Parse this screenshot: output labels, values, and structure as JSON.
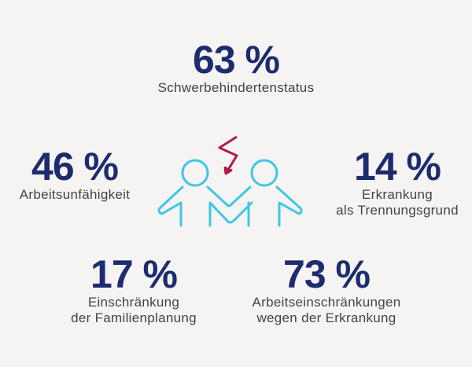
{
  "stats": [
    {
      "value": "63 %",
      "label_lines": [
        "Schwerbehindertenstatus"
      ]
    },
    {
      "value": "46 %",
      "label_lines": [
        "Arbeitsunfähigkeit"
      ]
    },
    {
      "value": "14 %",
      "label_lines": [
        "Erkrankung",
        "als Trennungsgrund"
      ]
    },
    {
      "value": "17 %",
      "label_lines": [
        "Einschränkung",
        "der Familienplanung"
      ]
    },
    {
      "value": "73 %",
      "label_lines": [
        "Arbeitseinschränkungen",
        "wegen der Erkrankung"
      ]
    }
  ],
  "colors": {
    "number": "#1d2c6e",
    "label": "#444444",
    "figures": "#3ec6e6",
    "lightning": "#b5174f",
    "background": "#f5f4f2"
  },
  "icon": "two-people-holding-hands-with-lightning-icon"
}
